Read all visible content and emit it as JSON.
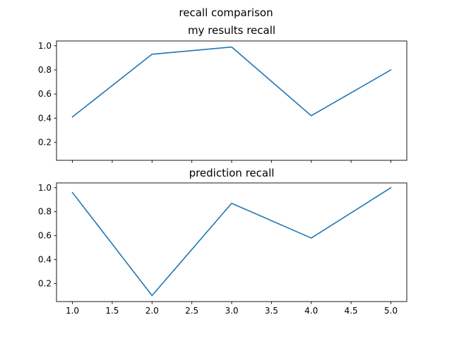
{
  "chart_data": {
    "type": "line",
    "suptitle": "recall comparison",
    "x_ticks": [
      1.0,
      1.5,
      2.0,
      2.5,
      3.0,
      3.5,
      4.0,
      4.5,
      5.0
    ],
    "x_tick_labels": [
      "1.0",
      "1.5",
      "2.0",
      "2.5",
      "3.0",
      "3.5",
      "4.0",
      "4.5",
      "5.0"
    ],
    "xlim": [
      0.8,
      5.2
    ],
    "sharex": true,
    "grid": false,
    "line_color": "#1f77b4",
    "subplots": [
      {
        "title": "my results recall",
        "x": [
          1,
          2,
          3,
          4,
          5
        ],
        "y": [
          0.41,
          0.93,
          0.99,
          0.42,
          0.8
        ],
        "ylim": [
          0.05,
          1.04
        ],
        "y_ticks": [
          0.2,
          0.4,
          0.6,
          0.8,
          1.0
        ],
        "y_tick_labels": [
          "0.2",
          "0.4",
          "0.6",
          "0.8",
          "1.0"
        ]
      },
      {
        "title": "prediction recall",
        "x": [
          1,
          2,
          3,
          4,
          5
        ],
        "y": [
          0.96,
          0.1,
          0.87,
          0.58,
          1.0
        ],
        "ylim": [
          0.05,
          1.04
        ],
        "y_ticks": [
          0.2,
          0.4,
          0.6,
          0.8,
          1.0
        ],
        "y_tick_labels": [
          "0.2",
          "0.4",
          "0.6",
          "0.8",
          "1.0"
        ]
      }
    ]
  }
}
